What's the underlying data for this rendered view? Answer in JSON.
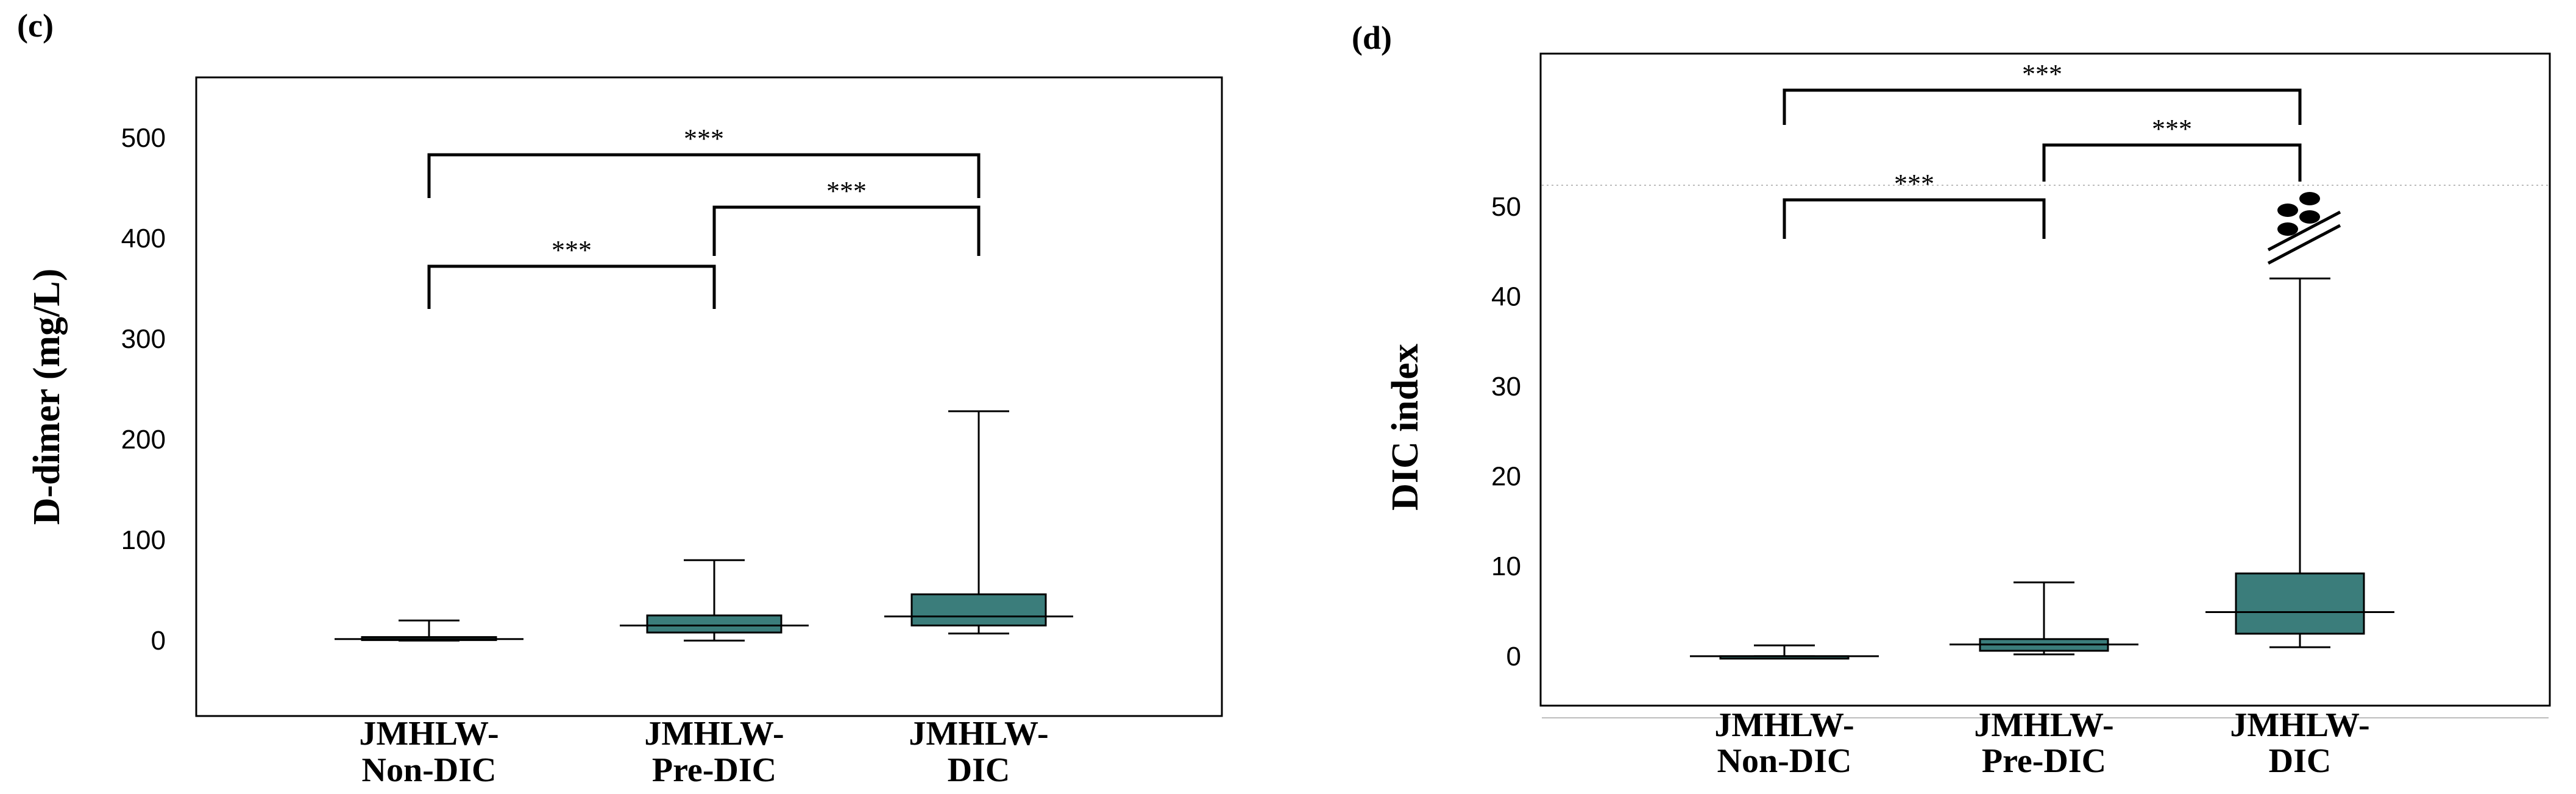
{
  "chart_data": [
    {
      "type": "boxplot",
      "panel_label": "(c)",
      "ylabel": "D-dimer (mg/L)",
      "ylim": [
        -75,
        560
      ],
      "yticks": [
        0,
        100,
        200,
        300,
        400,
        500
      ],
      "categories": [
        [
          "JMHLW-",
          "Non-DIC"
        ],
        [
          "JMHLW-",
          "Pre-DIC"
        ],
        [
          "JMHLW-",
          "DIC"
        ]
      ],
      "boxes": [
        {
          "min": 0,
          "q1": 0.5,
          "median": 1.5,
          "q3": 3.5,
          "max": 20
        },
        {
          "min": 0,
          "q1": 8,
          "median": 15,
          "q3": 25,
          "max": 80
        },
        {
          "min": 7,
          "q1": 15,
          "median": 24,
          "q3": 46,
          "max": 228
        }
      ],
      "comparisons": [
        {
          "from": 0,
          "to": 1,
          "label": "***"
        },
        {
          "from": 1,
          "to": 2,
          "label": "***"
        },
        {
          "from": 0,
          "to": 2,
          "label": "***"
        }
      ],
      "box_color": "#3b7d7b"
    },
    {
      "type": "boxplot",
      "panel_label": "(d)",
      "ylabel": "DIC index",
      "ylim": [
        -5.5,
        67
      ],
      "yticks": [
        0,
        10,
        20,
        30,
        40,
        50
      ],
      "axis_break": true,
      "categories": [
        [
          "JMHLW-",
          "Non-DIC"
        ],
        [
          "JMHLW-",
          "Pre-DIC"
        ],
        [
          "JMHLW-",
          "DIC"
        ]
      ],
      "boxes": [
        {
          "min": 0,
          "q1": 0,
          "median": 0,
          "q3": 0,
          "max": 1.2
        },
        {
          "min": 0.2,
          "q1": 0.6,
          "median": 1.3,
          "q3": 1.9,
          "max": 8.2
        },
        {
          "min": 1,
          "q1": 2.5,
          "median": 4.9,
          "q3": 9.2,
          "max": 42
        }
      ],
      "comparisons": [
        {
          "from": 0,
          "to": 1,
          "label": "***"
        },
        {
          "from": 1,
          "to": 2,
          "label": "***"
        },
        {
          "from": 0,
          "to": 2,
          "label": "***"
        }
      ],
      "box_color": "#3b7d7b"
    }
  ]
}
